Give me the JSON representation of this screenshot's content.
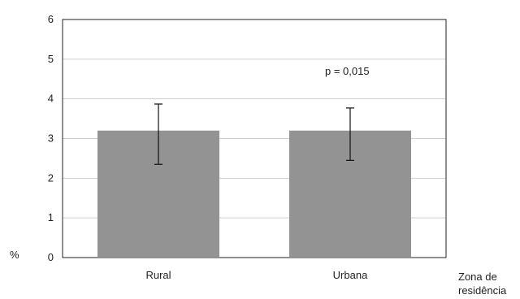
{
  "chart_data": {
    "type": "bar",
    "categories": [
      "Rural",
      "Urbana"
    ],
    "values": [
      3.2,
      3.2
    ],
    "error_low": [
      2.35,
      2.45
    ],
    "error_high": [
      3.87,
      3.77
    ],
    "ylim": [
      0,
      6
    ],
    "yticks": [
      "0",
      "1",
      "2",
      "3",
      "4",
      "5",
      "6"
    ],
    "ylabel": "%",
    "xlabel": "Zona de residência",
    "xlabel_lines": [
      "Zona de",
      "residência"
    ],
    "annotation": "p = 0,015",
    "grid": true,
    "legend": "none",
    "bar_color": "#939393"
  }
}
